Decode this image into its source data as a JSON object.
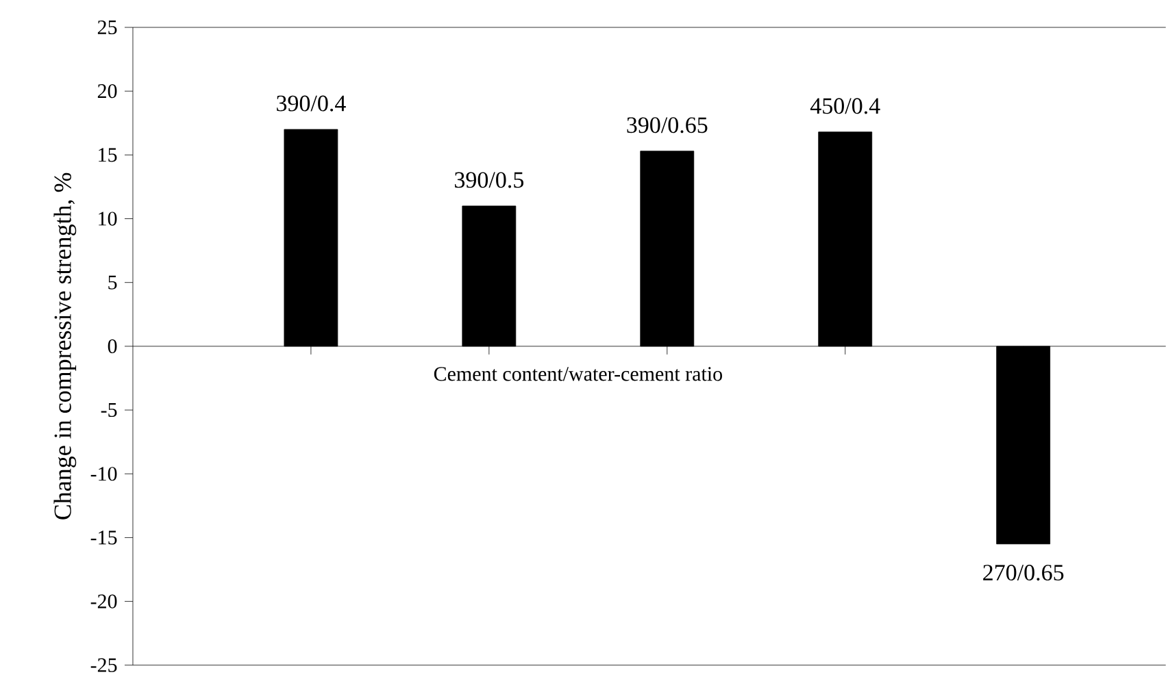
{
  "chart_data": {
    "type": "bar",
    "xlabel": "Cement content/water-cement ratio",
    "ylabel": "Change in compressive strength, %",
    "categories": [
      "390/0.4",
      "390/0.5",
      "390/0.65",
      "450/0.4",
      "270/0.65"
    ],
    "values": [
      17,
      11,
      15.3,
      16.8,
      -15.5
    ],
    "color": "#000000",
    "ylim": [
      -25,
      25
    ],
    "yticks": [
      -25,
      -20,
      -15,
      -10,
      -5,
      0,
      5,
      10,
      15,
      20,
      25
    ]
  }
}
